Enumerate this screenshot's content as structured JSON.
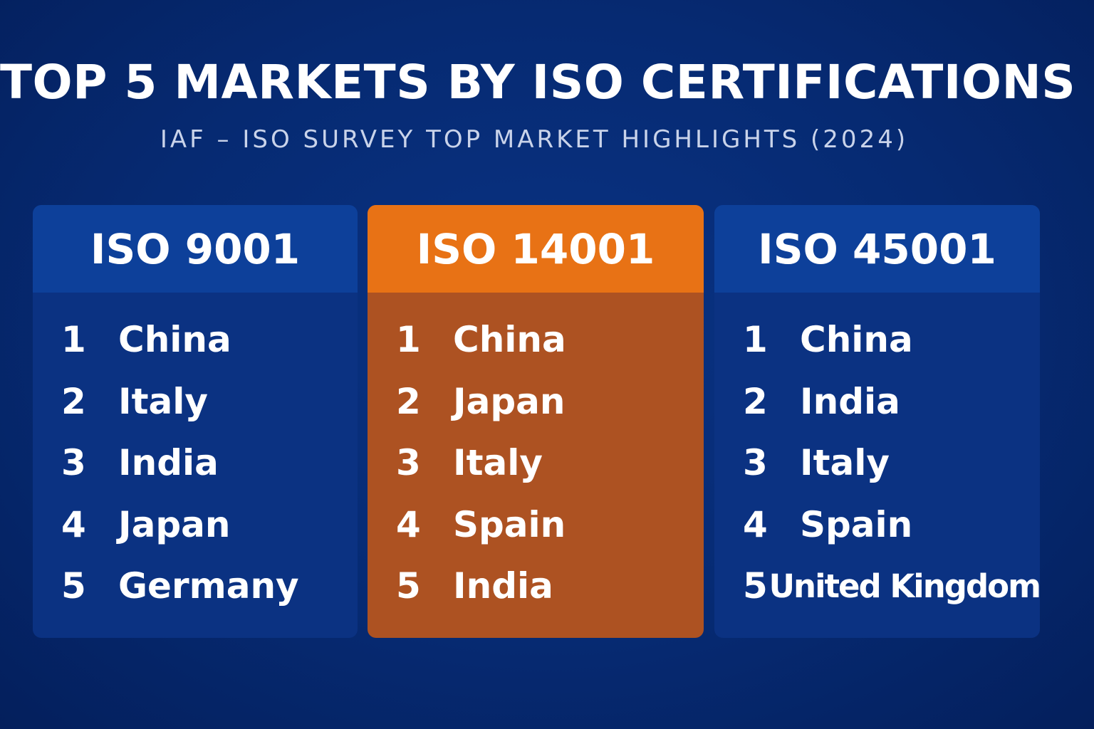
{
  "title": "TOP 5 MARKETS BY ISO CERTIFICATIONS",
  "subtitle": "IAF – ISO SURVEY TOP MARKET HIGHLIGHTS (2024)",
  "colors": {
    "background": "#062a72",
    "blue_panel": "#0b3282",
    "blue_header": "#0d409a",
    "orange_panel": "#ad5222",
    "orange_header": "#e87215"
  },
  "panels": [
    {
      "header": "ISO 9001",
      "ranks": [
        {
          "rank": "1",
          "country": "China"
        },
        {
          "rank": "2",
          "country": "Italy"
        },
        {
          "rank": "3",
          "country": "India"
        },
        {
          "rank": "4",
          "country": "Japan"
        },
        {
          "rank": "5",
          "country": "Germany"
        }
      ]
    },
    {
      "header": "ISO 14001",
      "ranks": [
        {
          "rank": "1",
          "country": "China"
        },
        {
          "rank": "2",
          "country": "Japan"
        },
        {
          "rank": "3",
          "country": "Italy"
        },
        {
          "rank": "4",
          "country": "Spain"
        },
        {
          "rank": "5",
          "country": "India"
        }
      ]
    },
    {
      "header": "ISO 45001",
      "ranks": [
        {
          "rank": "1",
          "country": "China"
        },
        {
          "rank": "2",
          "country": "India"
        },
        {
          "rank": "3",
          "country": "Italy"
        },
        {
          "rank": "4",
          "country": "Spain"
        },
        {
          "rank": "5",
          "country": "United Kingdom"
        }
      ]
    }
  ]
}
